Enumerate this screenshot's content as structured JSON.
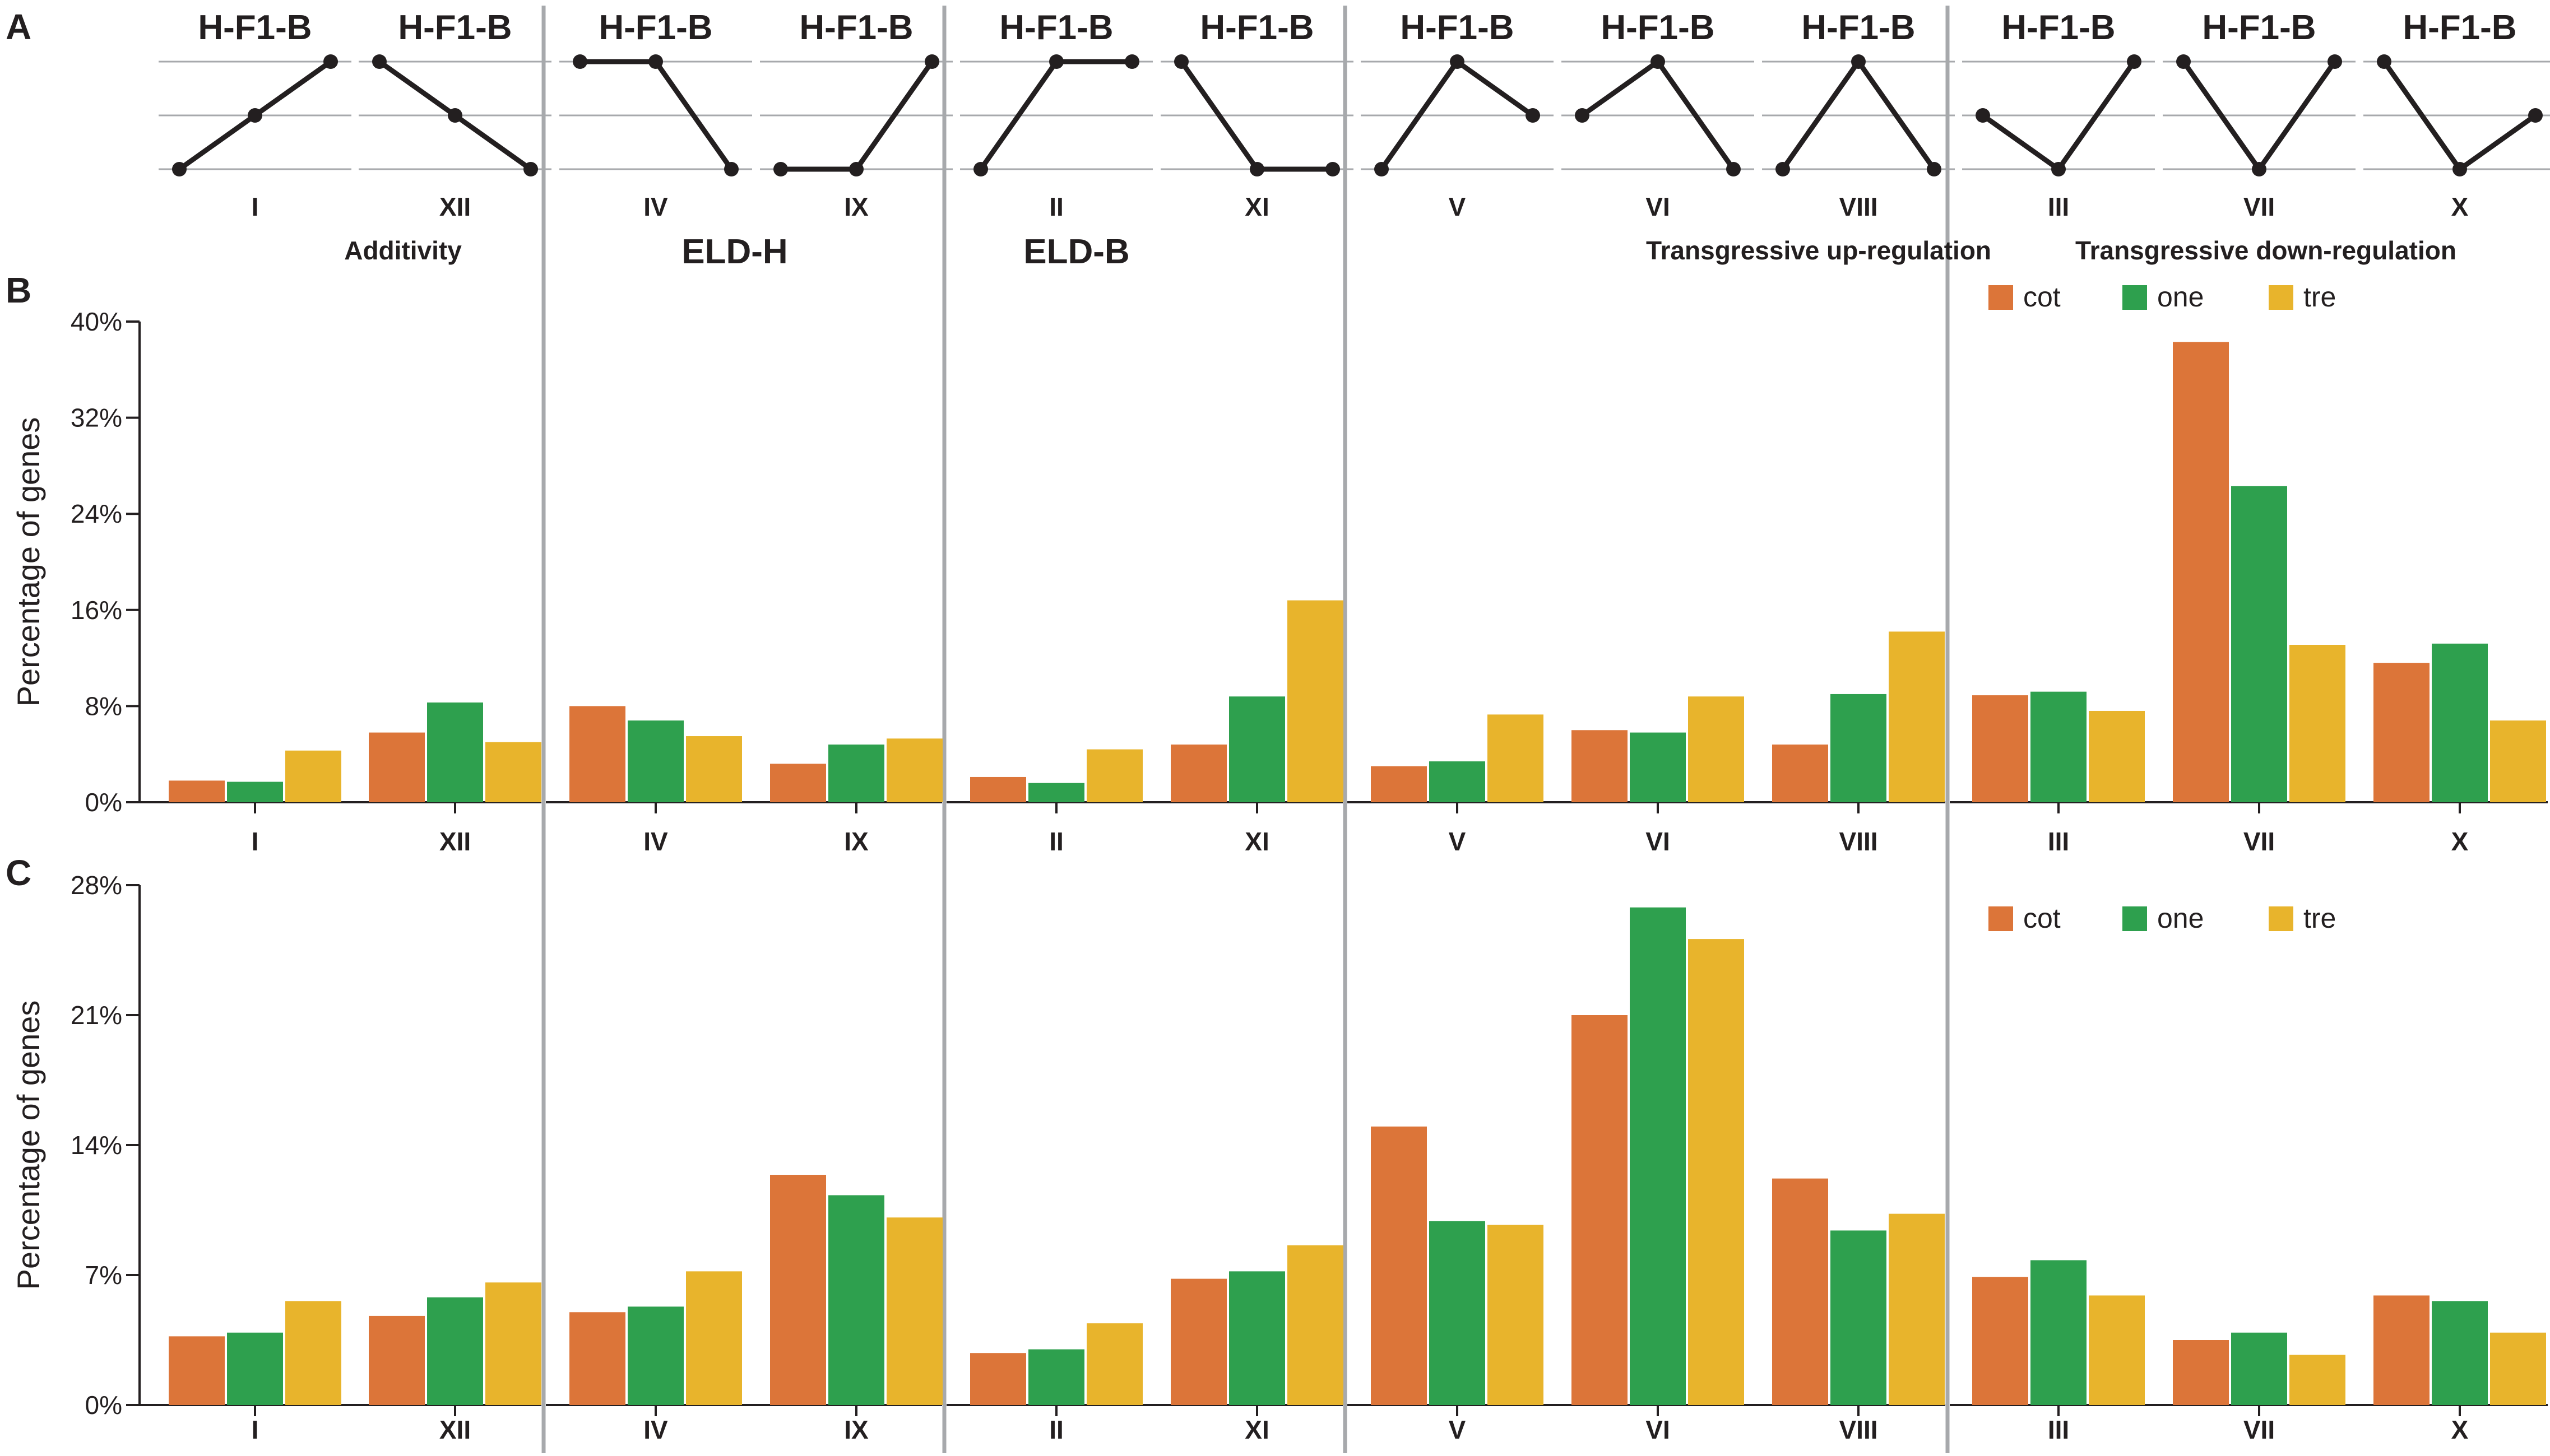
{
  "panel_letters": [
    "A",
    "B",
    "C"
  ],
  "pattern_header": "H-F1-B",
  "patterns": [
    {
      "roman": "I",
      "levels": [
        0,
        1,
        2
      ]
    },
    {
      "roman": "XII",
      "levels": [
        2,
        1,
        0
      ]
    },
    {
      "roman": "IV",
      "levels": [
        2,
        2,
        0
      ]
    },
    {
      "roman": "IX",
      "levels": [
        0,
        0,
        2
      ]
    },
    {
      "roman": "II",
      "levels": [
        0,
        2,
        2
      ]
    },
    {
      "roman": "XI",
      "levels": [
        2,
        0,
        0
      ]
    },
    {
      "roman": "V",
      "levels": [
        0,
        2,
        1
      ]
    },
    {
      "roman": "VI",
      "levels": [
        1,
        2,
        0
      ]
    },
    {
      "roman": "VIII",
      "levels": [
        0,
        2,
        0
      ]
    },
    {
      "roman": "III",
      "levels": [
        1,
        0,
        2
      ]
    },
    {
      "roman": "VII",
      "levels": [
        2,
        0,
        2
      ]
    },
    {
      "roman": "X",
      "levels": [
        2,
        0,
        1
      ]
    }
  ],
  "groups": [
    "Additivity",
    "ELD-H",
    "ELD-B",
    "Transgressive up-regulation",
    "Transgressive down-regulation"
  ],
  "colors": {
    "cot": "#dc7539",
    "one": "#2ea04e",
    "tre": "#e8b42c",
    "line": "#231f20",
    "divider": "#a7a9ac",
    "grid": "#a7a9ac"
  },
  "chart_data": [
    {
      "type": "bar",
      "panel": "B",
      "ylabel": "Percentage of genes",
      "ylim": [
        0,
        40
      ],
      "yticks": [
        "0%",
        "8%",
        "16%",
        "24%",
        "32%",
        "40%"
      ],
      "categories": [
        "I",
        "XII",
        "IV",
        "IX",
        "II",
        "XI",
        "V",
        "VI",
        "VIII",
        "III",
        "VII",
        "X"
      ],
      "legend": [
        "cot",
        "one",
        "tre"
      ],
      "series": [
        {
          "name": "cot",
          "values": [
            1.8,
            5.8,
            8.0,
            3.2,
            2.1,
            4.8,
            3.0,
            6.0,
            4.8,
            8.9,
            38.3,
            11.6
          ]
        },
        {
          "name": "one",
          "values": [
            1.7,
            8.3,
            6.8,
            4.8,
            1.6,
            8.8,
            3.4,
            5.8,
            9.0,
            9.2,
            26.3,
            13.2
          ]
        },
        {
          "name": "tre",
          "values": [
            4.3,
            5.0,
            5.5,
            5.3,
            4.4,
            16.8,
            7.3,
            8.8,
            14.2,
            7.6,
            13.1,
            6.8
          ]
        }
      ]
    },
    {
      "type": "bar",
      "panel": "C",
      "ylabel": "Percentage of genes",
      "ylim": [
        0,
        28
      ],
      "yticks": [
        "0%",
        "7%",
        "14%",
        "21%",
        "28%"
      ],
      "categories": [
        "I",
        "XII",
        "IV",
        "IX",
        "II",
        "XI",
        "V",
        "VI",
        "VIII",
        "III",
        "VII",
        "X"
      ],
      "legend": [
        "cot",
        "one",
        "tre"
      ],
      "series": [
        {
          "name": "cot",
          "values": [
            3.7,
            4.8,
            5.0,
            12.4,
            2.8,
            6.8,
            15.0,
            21.0,
            12.2,
            6.9,
            3.5,
            5.9
          ]
        },
        {
          "name": "one",
          "values": [
            3.9,
            5.8,
            5.3,
            11.3,
            3.0,
            7.2,
            9.9,
            26.8,
            9.4,
            7.8,
            3.9,
            5.6
          ]
        },
        {
          "name": "tre",
          "values": [
            5.6,
            6.6,
            7.2,
            10.1,
            4.4,
            8.6,
            9.7,
            25.1,
            10.3,
            5.9,
            2.7,
            3.9
          ]
        }
      ]
    }
  ]
}
